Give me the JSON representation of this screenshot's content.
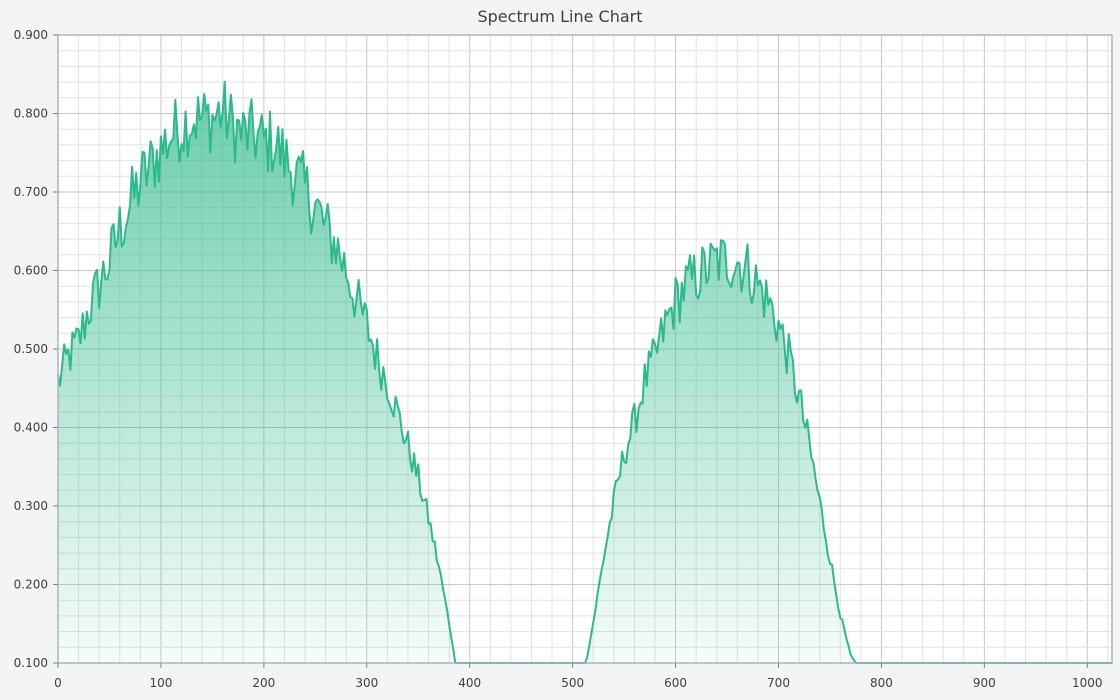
{
  "chart_data": {
    "type": "area",
    "title": "Spectrum Line Chart",
    "xlabel": "",
    "ylabel": "",
    "xlim": [
      0,
      1024
    ],
    "ylim": [
      0.1,
      0.9
    ],
    "x_ticks": [
      "0",
      "100",
      "200",
      "300",
      "400",
      "500",
      "600",
      "700",
      "800",
      "900",
      "1000"
    ],
    "y_ticks": [
      "0.100",
      "0.200",
      "0.300",
      "0.400",
      "0.500",
      "0.600",
      "0.700",
      "0.800",
      "0.900"
    ],
    "grid": true,
    "legend": "none",
    "colors": {
      "line": "#2db98d",
      "fill": "#2db98d",
      "grid_major": "#c8c8c8",
      "grid_minor": "#e2e2e2",
      "plot_bg": "#ffffff"
    },
    "series": [
      {
        "x": [
          0,
          10,
          20,
          30,
          40,
          50,
          60,
          70,
          80,
          90,
          100,
          110,
          120,
          130,
          140,
          150,
          160,
          170,
          180,
          190,
          200,
          210,
          220,
          230,
          240,
          250,
          260,
          270,
          280,
          290,
          300,
          310,
          320,
          330,
          340,
          350,
          360,
          370,
          380,
          386,
          400,
          450,
          500,
          513,
          520,
          530,
          540,
          550,
          560,
          570,
          580,
          590,
          600,
          610,
          620,
          630,
          640,
          650,
          660,
          670,
          680,
          690,
          700,
          710,
          720,
          730,
          740,
          750,
          760,
          770,
          775,
          800,
          900,
          1000,
          1024
        ],
        "y": [
          0.45,
          0.48,
          0.5,
          0.54,
          0.57,
          0.6,
          0.64,
          0.67,
          0.7,
          0.72,
          0.74,
          0.76,
          0.77,
          0.78,
          0.78,
          0.78,
          0.79,
          0.77,
          0.76,
          0.76,
          0.75,
          0.75,
          0.73,
          0.71,
          0.69,
          0.67,
          0.64,
          0.62,
          0.59,
          0.55,
          0.52,
          0.48,
          0.45,
          0.41,
          0.37,
          0.33,
          0.28,
          0.22,
          0.15,
          0.1,
          0.1,
          0.1,
          0.1,
          0.1,
          0.15,
          0.23,
          0.3,
          0.36,
          0.4,
          0.45,
          0.48,
          0.52,
          0.55,
          0.57,
          0.58,
          0.59,
          0.6,
          0.6,
          0.6,
          0.59,
          0.57,
          0.55,
          0.52,
          0.48,
          0.43,
          0.37,
          0.3,
          0.23,
          0.16,
          0.11,
          0.1,
          0.1,
          0.1,
          0.1,
          0.1
        ]
      }
    ]
  }
}
